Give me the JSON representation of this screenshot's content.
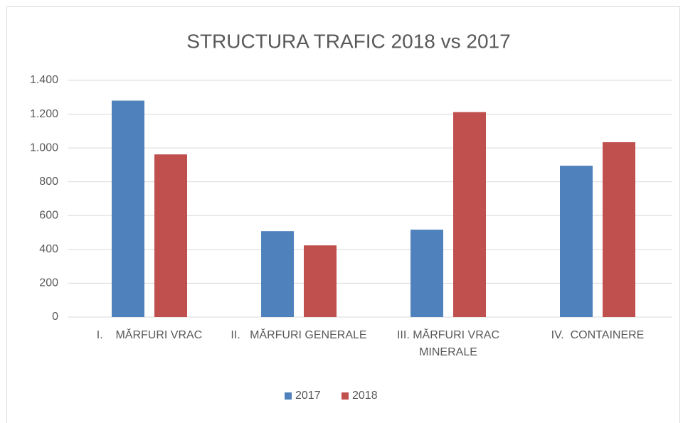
{
  "chart_data": {
    "type": "bar",
    "title": "STRUCTURA TRAFIC 2018 vs 2017",
    "categories": [
      "I.    MĂRFURI VRAC",
      "II.   MĂRFURI GENERALE",
      "III. MĂRFURI VRAC MINERALE",
      "IV.  CONTAINERE"
    ],
    "series": [
      {
        "name": "2017",
        "color": "#4f81bd",
        "values": [
          1280,
          508,
          517,
          895
        ]
      },
      {
        "name": "2018",
        "color": "#c0504d",
        "values": [
          962,
          424,
          1212,
          1034
        ]
      }
    ],
    "ylim": [
      0,
      1400
    ],
    "yticks": [
      0,
      200,
      400,
      600,
      800,
      {
        "value": 1000,
        "label": "1.000"
      },
      {
        "value": 1200,
        "label": "1.200"
      },
      {
        "value": 1400,
        "label": "1.400"
      }
    ],
    "grid": true,
    "legend": "bottom"
  }
}
